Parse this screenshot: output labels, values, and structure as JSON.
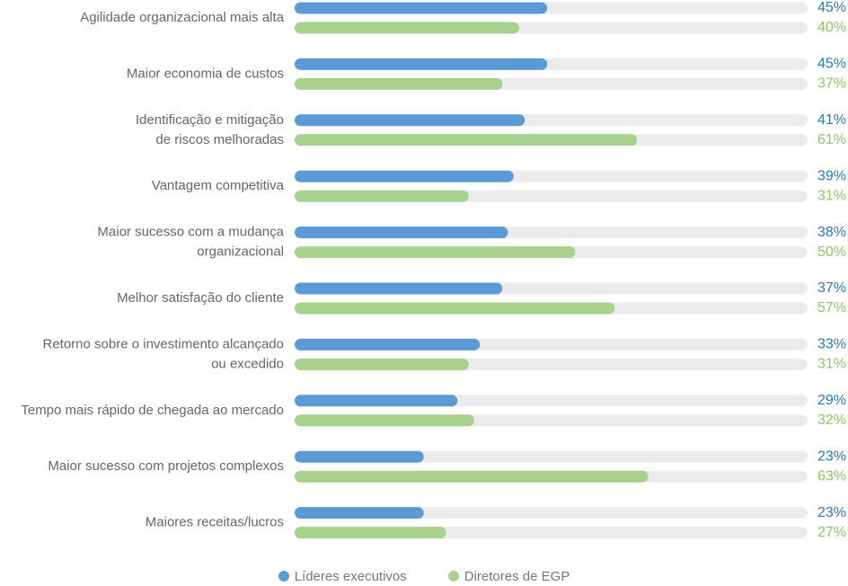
{
  "chart_data": {
    "type": "bar",
    "orientation": "horizontal",
    "categories": [
      [
        "Agilidade organizacional mais alta"
      ],
      [
        "Maior economia de custos"
      ],
      [
        "Identificação e mitigação",
        "de riscos melhoradas"
      ],
      [
        "Vantagem competitiva"
      ],
      [
        "Maior sucesso com a mudança",
        "organizacional"
      ],
      [
        "Melhor satisfação do cliente"
      ],
      [
        "Retorno sobre o investimento alcançado",
        "ou excedido"
      ],
      [
        "Tempo mais rápido de chegada ao mercado"
      ],
      [
        "Maior sucesso com projetos complexos"
      ],
      [
        "Maiores receitas/lucros"
      ]
    ],
    "series": [
      {
        "name": "Líderes executivos",
        "color": "#5b9bd5",
        "label_color": "#2f75b5",
        "values": [
          45,
          45,
          41,
          39,
          38,
          37,
          33,
          29,
          23,
          23
        ],
        "labels": [
          "45%",
          "45%",
          "41%",
          "39%",
          "38%",
          "37%",
          "33%",
          "29%",
          "23%",
          "23%"
        ]
      },
      {
        "name": "Diretores de EGP",
        "color": "#a9d18e",
        "label_color": "#8dc46a",
        "values": [
          40,
          37,
          61,
          31,
          50,
          57,
          31,
          32,
          63,
          27
        ],
        "labels": [
          "40%",
          "37%",
          "61%",
          "31%",
          "50%",
          "57%",
          "31%",
          "32%",
          "63%",
          "27%"
        ]
      }
    ],
    "track_color": "#ececec",
    "legend": "bottom-center",
    "grid": false
  },
  "legend": {
    "items": [
      {
        "label": "Líderes executivos",
        "color": "#5b9bd5"
      },
      {
        "label": "Diretores de EGP",
        "color": "#a9d18e"
      }
    ]
  }
}
